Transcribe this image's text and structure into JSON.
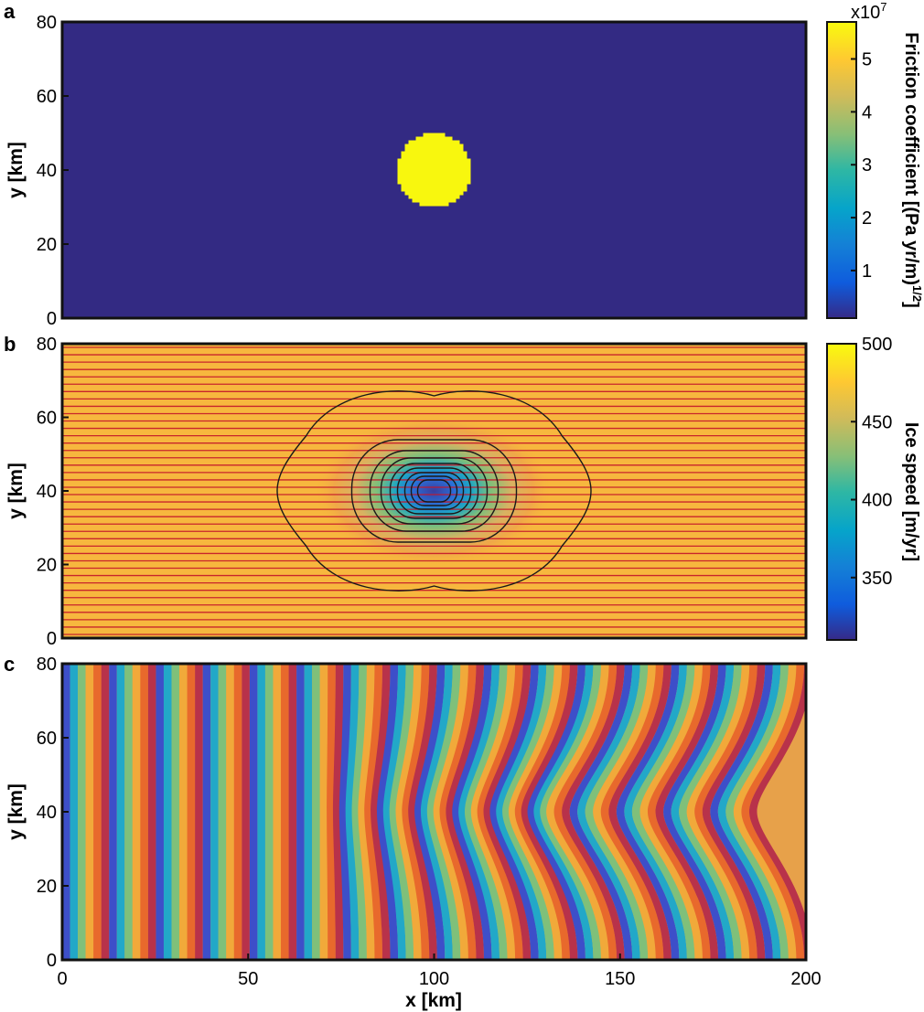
{
  "chart_data": [
    {
      "panel": "a",
      "type": "heatmap",
      "description_values": {
        "background_value": 0,
        "bump_value": 5.7
      },
      "bump": {
        "center_x_km": 100,
        "center_y_km": 40,
        "radius_km": 10
      },
      "xlim": [
        0,
        200
      ],
      "ylim": [
        0,
        80
      ],
      "yticks": [
        "0",
        "20",
        "40",
        "60",
        "80"
      ],
      "ylabel": "y [km]",
      "colorbar": {
        "label": "Friction coefficient [(Pa yr/m)",
        "label_superscript": "1/2",
        "label_close": "]",
        "multiplier": "x10",
        "multiplier_exp": "7",
        "ticks": [
          "1",
          "2",
          "3",
          "4",
          "5"
        ],
        "tick_values": [
          1,
          2,
          3,
          4,
          5
        ],
        "range": [
          0.1,
          5.7
        ]
      },
      "colors": {
        "background": "#332a83",
        "bump": "#f8f70e"
      }
    },
    {
      "panel": "b",
      "type": "heatmap",
      "xlim": [
        0,
        200
      ],
      "ylim": [
        0,
        80
      ],
      "yticks": [
        "0",
        "20",
        "40",
        "60",
        "80"
      ],
      "ylabel": "y [km]",
      "minimum": {
        "x_km": 100,
        "y_km": 40,
        "speed": 312
      },
      "far_field_speed": 485,
      "contours_speed": [
        470,
        440,
        420,
        400,
        380,
        360,
        345,
        330,
        320
      ],
      "flowlines_y_km_spacing": 2,
      "colorbar": {
        "label": "Ice speed [m/yr]",
        "ticks": [
          "350",
          "400",
          "450",
          "500"
        ],
        "tick_values": [
          350,
          400,
          450,
          500
        ],
        "range": [
          310,
          500
        ]
      },
      "colors": {
        "flowline": "#c4162a",
        "contour": "#1a1a1a"
      }
    },
    {
      "panel": "c",
      "type": "heatmap",
      "xlim": [
        0,
        200
      ],
      "ylim": [
        0,
        80
      ],
      "xticks": [
        "0",
        "50",
        "100",
        "150",
        "200"
      ],
      "yticks": [
        "0",
        "20",
        "40",
        "60",
        "80"
      ],
      "xlabel": "x [km]",
      "ylabel": "y [km]",
      "fringe_spacing_km": 2.1,
      "fringe_colors": [
        "#3d4fc9",
        "#22a8c8",
        "#7fc07a",
        "#f1a93a",
        "#e8692c",
        "#b8324a"
      ]
    }
  ],
  "panel_labels": {
    "a": "a",
    "b": "b",
    "c": "c"
  }
}
